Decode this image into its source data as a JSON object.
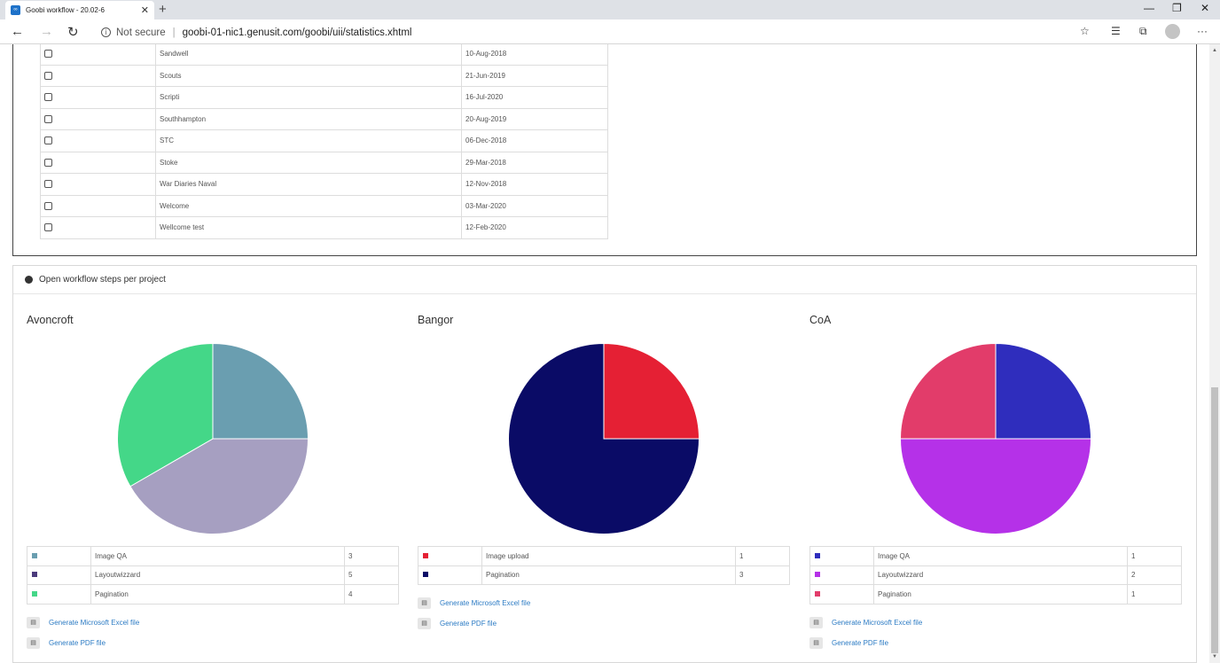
{
  "browser": {
    "tab_title": "Goobi workflow - 20.02-6",
    "tab_favicon": "∞",
    "tab_close": "✕",
    "new_tab": "+",
    "not_secure": "Not secure",
    "separator": "|",
    "url": "goobi-01-nic1.genusit.com/goobi/uii/statistics.xhtml",
    "icons": [
      "back-icon",
      "forward-icon",
      "reload-icon",
      "info-icon",
      "star-icon",
      "favorites-icon",
      "collections-icon",
      "profile-icon",
      "more-icon",
      "minimize-icon",
      "restore-icon",
      "close-icon"
    ]
  },
  "projects_table": {
    "rows": [
      {
        "name": "Sandwell",
        "date": "10-Aug-2018"
      },
      {
        "name": "Scouts",
        "date": "21-Jun-2019"
      },
      {
        "name": "Scripti",
        "date": "16-Jul-2020"
      },
      {
        "name": "Southhampton",
        "date": "20-Aug-2019"
      },
      {
        "name": "STC",
        "date": "06-Dec-2018"
      },
      {
        "name": "Stoke",
        "date": "29-Mar-2018"
      },
      {
        "name": "War Diaries Naval",
        "date": "12-Nov-2018"
      },
      {
        "name": "Welcome",
        "date": "03-Mar-2020"
      },
      {
        "name": "Wellcome test",
        "date": "12-Feb-2020"
      }
    ]
  },
  "steps_panel": {
    "heading": "Open workflow steps per project",
    "excel_label": "Generate Microsoft Excel file",
    "pdf_label": "Generate PDF file"
  },
  "chart_data": [
    {
      "type": "pie",
      "title": "Avoncroft",
      "categories": [
        "Image QA",
        "Layoutwizzard",
        "Pagination"
      ],
      "values": [
        3,
        5,
        4
      ],
      "colors": [
        "#6a9eb0",
        "#a69fc1",
        "#44d788"
      ],
      "legend_colors": [
        "#6a9eb0",
        "#4b3a7c",
        "#44d788"
      ]
    },
    {
      "type": "pie",
      "title": "Bangor",
      "categories": [
        "Image upload",
        "Pagination"
      ],
      "values": [
        1,
        3
      ],
      "colors": [
        "#e52034",
        "#0a0b66"
      ],
      "legend_colors": [
        "#e52034",
        "#0a0b66"
      ]
    },
    {
      "type": "pie",
      "title": "CoA",
      "categories": [
        "Image QA",
        "Layoutwizzard",
        "Pagination"
      ],
      "values": [
        1,
        2,
        1
      ],
      "colors": [
        "#2f2dbd",
        "#b531e8",
        "#e23c6a"
      ],
      "legend_colors": [
        "#2f2dbd",
        "#b531e8",
        "#e23c6a"
      ]
    }
  ]
}
